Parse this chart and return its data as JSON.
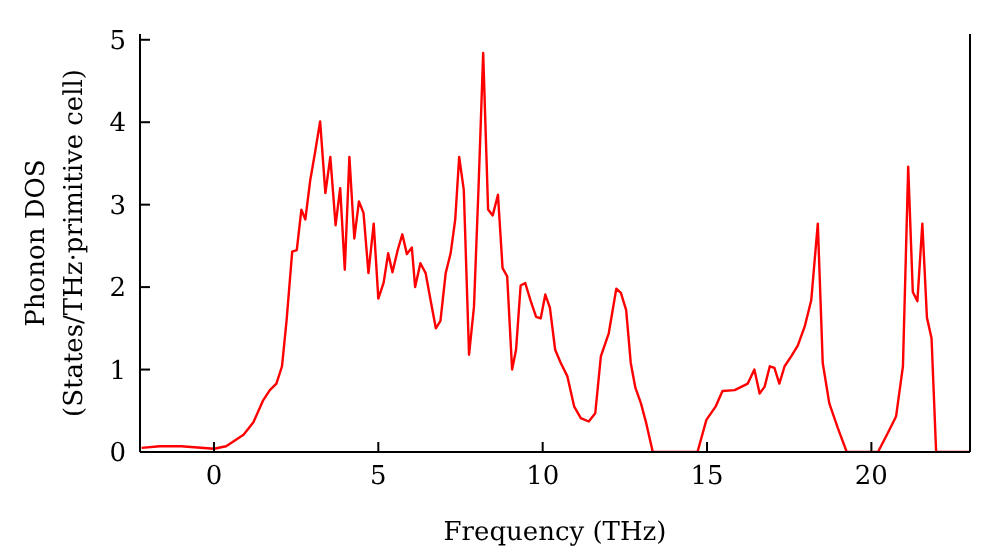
{
  "chart_data": {
    "type": "line",
    "xlabel": "Frequency (THz)",
    "ylabel": "Phonon DOS\n(States/THz·primitive cell)",
    "xlim": [
      -2.25,
      23
    ],
    "ylim": [
      0,
      5.07
    ],
    "xticks": [
      0,
      5,
      10,
      15,
      20
    ],
    "yticks": [
      0,
      1,
      2,
      3,
      4,
      5
    ],
    "grid": false,
    "legend": false,
    "marker": "none",
    "line_style": "solid",
    "x": [
      -2.2,
      -1.65,
      -1.0,
      0,
      0.37,
      0.9,
      1.2,
      1.5,
      1.7,
      1.9,
      2.07,
      2.21,
      2.38,
      2.52,
      2.66,
      2.78,
      2.93,
      3.07,
      3.23,
      3.39,
      3.54,
      3.7,
      3.84,
      3.98,
      4.12,
      4.27,
      4.41,
      4.55,
      4.7,
      4.86,
      5.0,
      5.16,
      5.3,
      5.43,
      5.59,
      5.73,
      5.87,
      6.02,
      6.12,
      6.28,
      6.44,
      6.59,
      6.75,
      6.89,
      7.05,
      7.2,
      7.34,
      7.46,
      7.6,
      7.76,
      7.91,
      8.05,
      8.19,
      8.34,
      8.48,
      8.64,
      8.78,
      8.92,
      9.07,
      9.19,
      9.33,
      9.47,
      9.63,
      9.8,
      9.94,
      10.08,
      10.22,
      10.38,
      10.55,
      10.75,
      10.96,
      11.16,
      11.4,
      11.6,
      11.77,
      12.01,
      12.24,
      12.38,
      12.54,
      12.68,
      12.82,
      12.99,
      13.15,
      13.35,
      14.71,
      14.98,
      15.26,
      15.47,
      15.84,
      16.24,
      16.44,
      16.6,
      16.75,
      16.91,
      17.05,
      17.2,
      17.36,
      17.56,
      17.76,
      17.97,
      18.17,
      18.37,
      18.52,
      18.72,
      18.98,
      19.25,
      20.2,
      20.5,
      20.75,
      20.96,
      21.12,
      21.26,
      21.4,
      21.55,
      21.69,
      21.83,
      21.97,
      23.0
    ],
    "series": [
      {
        "color": "#ff0000",
        "values": [
          0.05,
          0.07,
          0.07,
          0.04,
          0.07,
          0.21,
          0.36,
          0.63,
          0.75,
          0.83,
          1.04,
          1.6,
          2.43,
          2.45,
          2.94,
          2.82,
          3.3,
          3.62,
          4.01,
          3.14,
          3.58,
          2.75,
          3.2,
          2.21,
          3.58,
          2.59,
          3.04,
          2.9,
          2.17,
          2.77,
          1.86,
          2.05,
          2.41,
          2.18,
          2.45,
          2.64,
          2.4,
          2.48,
          2.0,
          2.29,
          2.17,
          1.84,
          1.5,
          1.59,
          2.17,
          2.41,
          2.82,
          3.58,
          3.18,
          1.18,
          1.76,
          3.22,
          4.84,
          2.94,
          2.87,
          3.12,
          2.23,
          2.13,
          1.0,
          1.24,
          2.02,
          2.05,
          1.84,
          1.64,
          1.62,
          1.91,
          1.75,
          1.24,
          1.08,
          0.92,
          0.55,
          0.41,
          0.37,
          0.47,
          1.16,
          1.44,
          1.98,
          1.93,
          1.72,
          1.08,
          0.78,
          0.59,
          0.35,
          0,
          0,
          0.39,
          0.55,
          0.74,
          0.75,
          0.83,
          1.0,
          0.71,
          0.79,
          1.04,
          1.02,
          0.83,
          1.04,
          1.16,
          1.29,
          1.52,
          1.84,
          2.77,
          1.08,
          0.59,
          0.29,
          0,
          0,
          0.23,
          0.43,
          1.04,
          3.46,
          1.94,
          1.83,
          2.77,
          1.63,
          1.38,
          0,
          0
        ]
      }
    ]
  }
}
